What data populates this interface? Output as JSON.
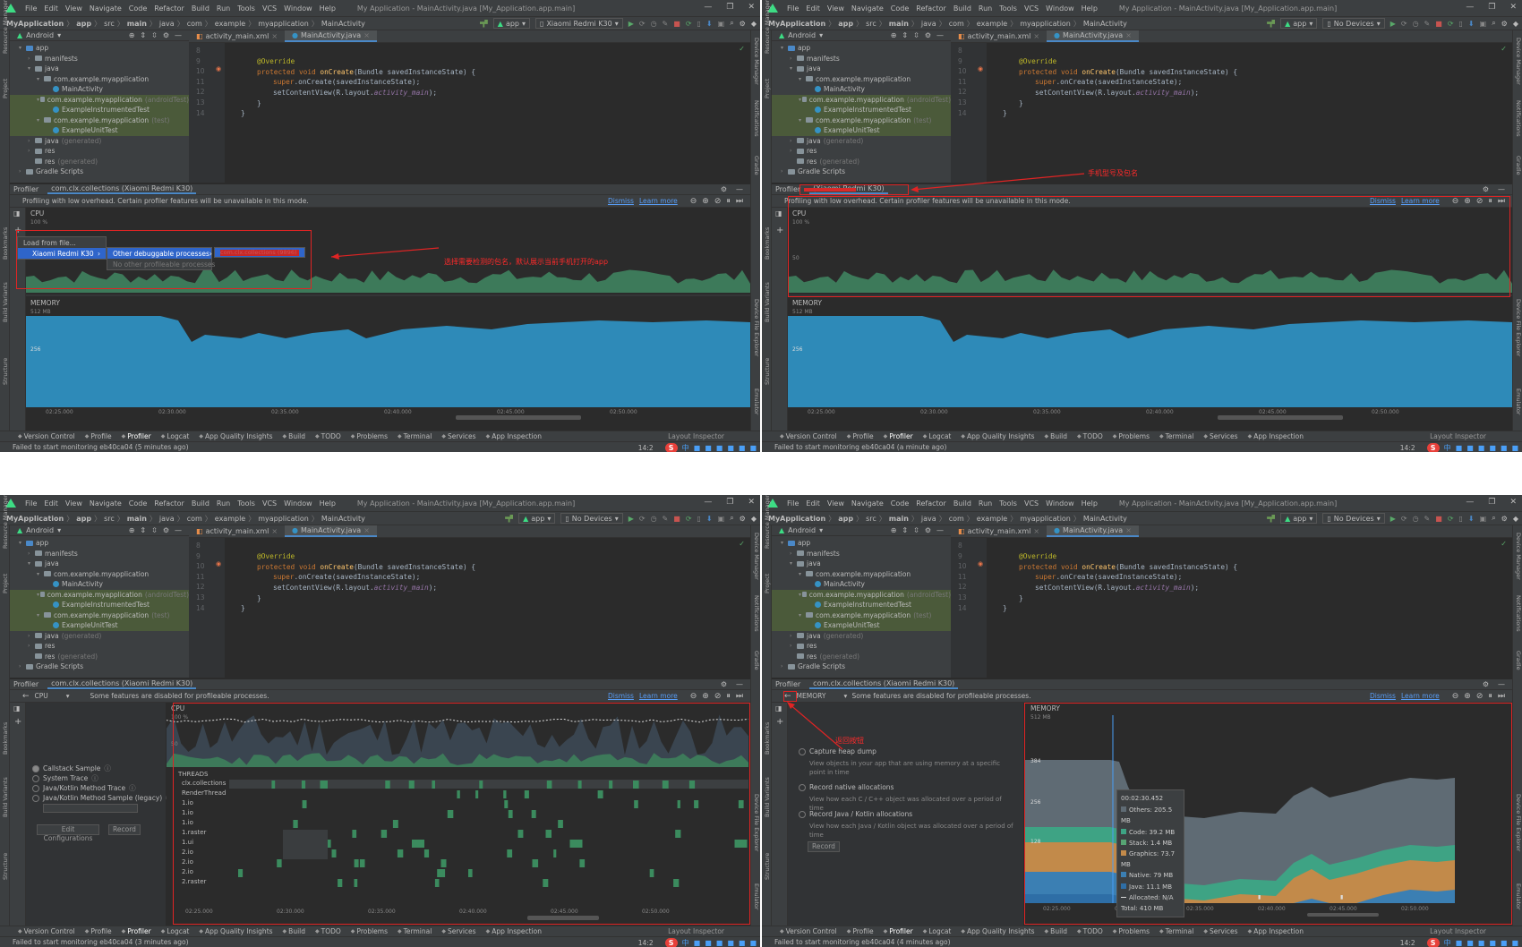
{
  "window": {
    "menu": [
      "File",
      "Edit",
      "View",
      "Navigate",
      "Code",
      "Refactor",
      "Build",
      "Run",
      "Tools",
      "VCS",
      "Window",
      "Help"
    ],
    "title": "My Application - MainActivity.java [My_Application.app.main]",
    "controls": [
      "—",
      "❐",
      "✕"
    ]
  },
  "breadcrumb": [
    "MyApplication",
    "app",
    "src",
    "main",
    "java",
    "com",
    "example",
    "myapplication",
    "MainActivity"
  ],
  "run_config": "app",
  "devices": {
    "q1": "Xiaomi Redmi K30",
    "q2": "No Devices",
    "q3": "No Devices",
    "q4": "No Devices"
  },
  "project": {
    "view": "Android",
    "tree": [
      {
        "label": "app",
        "depth": 0,
        "kind": "folder-blue",
        "arrow": "▾"
      },
      {
        "label": "manifests",
        "depth": 1,
        "kind": "folder",
        "arrow": "›"
      },
      {
        "label": "java",
        "depth": 1,
        "kind": "folder",
        "arrow": "▾"
      },
      {
        "label": "com.example.myapplication",
        "depth": 2,
        "kind": "folder",
        "arrow": "▾"
      },
      {
        "label": "MainActivity",
        "depth": 3,
        "kind": "class",
        "arrow": ""
      },
      {
        "label": "com.example.myapplication",
        "suffix": "(androidTest)",
        "depth": 2,
        "kind": "folder",
        "arrow": "▾",
        "hl": true
      },
      {
        "label": "ExampleInstrumentedTest",
        "depth": 3,
        "kind": "class",
        "arrow": "",
        "hl": true
      },
      {
        "label": "com.example.myapplication",
        "suffix": "(test)",
        "depth": 2,
        "kind": "folder",
        "arrow": "▾",
        "hl": true
      },
      {
        "label": "ExampleUnitTest",
        "depth": 3,
        "kind": "class",
        "arrow": "",
        "hl": true
      },
      {
        "label": "java",
        "suffix": "(generated)",
        "depth": 1,
        "kind": "folder",
        "arrow": "›"
      },
      {
        "label": "res",
        "depth": 1,
        "kind": "folder",
        "arrow": "›"
      },
      {
        "label": "res",
        "suffix": "(generated)",
        "depth": 1,
        "kind": "folder",
        "arrow": ""
      },
      {
        "label": "Gradle Scripts",
        "depth": 0,
        "kind": "folder",
        "arrow": "›"
      }
    ]
  },
  "editor": {
    "tabs": [
      "activity_main.xml",
      "MainActivity.java"
    ],
    "line_numbers": [
      "8",
      "9",
      "10",
      "11",
      "12",
      "13",
      "14"
    ],
    "code": {
      "l1": "@Override",
      "l2_kw": "protected void ",
      "l2_fn": "onCreate",
      "l2_rest": "(Bundle savedInstanceState) {",
      "l3_kw": "super",
      "l3_rest": ".onCreate(savedInstanceState);",
      "l4_a": "setContentView(R.layout.",
      "l4_it": "activity_main",
      "l4_b": ");",
      "l5": "}",
      "l6": "}"
    }
  },
  "profiler": {
    "title": "Profiler",
    "session_q1": "com.clx.collections (Xiaomi Redmi K30)",
    "session_q2": "(Xiaomi Redmi K30)",
    "session_q3": "com.clx.collections (Xiaomi Redmi K30)",
    "session_q4": "com.clx.collections (Xiaomi Redmi K30)",
    "overhead_msg": "Profiling with low overhead. Certain profiler features will be unavailable in this mode.",
    "disabled_msg": "Some features are disabled for profileable processes.",
    "dismiss": "Dismiss",
    "learn_more": "Learn more",
    "cpu_label": "CPU",
    "cpu_100": "100 %",
    "cpu_50": "50",
    "memory_label": "MEMORY",
    "memory_512": "512 MB",
    "memory_256": "256",
    "memory_384": "384",
    "memory_128": "128",
    "time_ticks": [
      "02:25.000",
      "02:30.000",
      "02:35.000",
      "02:40.000",
      "02:45.000",
      "02:50.000"
    ],
    "cpu_dropdown": "CPU",
    "memory_dropdown": "MEMORY"
  },
  "popup": {
    "load": "Load from file...",
    "device": "Xiaomi Redmi K30",
    "other": "Other debuggable processes",
    "none": "No other profileable processes",
    "process_redacted": "com.clx.collections (9896)"
  },
  "annotations": {
    "select_pkg": "选择需要检测的包名，默认展示当前手机打开的app",
    "phone_model": "手机型号及包名",
    "back_btn": "返回按钮"
  },
  "cpu_view": {
    "threads_label": "THREADS",
    "threads": [
      "clx.collections",
      "RenderThread",
      "1.io",
      "1.io",
      "1.io",
      "1.raster",
      "1.ui",
      "2.io",
      "2.io",
      "2.io",
      "2.raster"
    ],
    "record_options": [
      "Callstack Sample",
      "System Trace",
      "Java/Kotlin Method Trace",
      "Java/Kotlin Method Sample (legacy)"
    ],
    "edit_config": "Edit Configurations",
    "record": "Record"
  },
  "memory_view": {
    "options": [
      {
        "title": "Capture heap dump",
        "desc": "View objects in your app that are using memory at a specific point in time"
      },
      {
        "title": "Record native allocations",
        "desc": "View how each C / C++ object was allocated over a period of time"
      },
      {
        "title": "Record Java / Kotlin allocations",
        "desc": "View how each Java / Kotlin object was allocated over a period of time"
      }
    ],
    "record": "Record",
    "tooltip": {
      "time": "00:02:30.452",
      "rows": [
        {
          "label": "Others: 205.5 MB",
          "color": "#5f6b74"
        },
        {
          "label": "Code: 39.2 MB",
          "color": "#3ea384"
        },
        {
          "label": "Stack: 1.4 MB",
          "color": "#57a574"
        },
        {
          "label": "Graphics: 73.7 MB",
          "color": "#c28a4a"
        },
        {
          "label": "Native: 79 MB",
          "color": "#3b7fb3"
        },
        {
          "label": "Java: 11.1 MB",
          "color": "#2e6ea6"
        },
        {
          "label": "Allocated: N/A",
          "color": "#dddddd"
        },
        {
          "label": "Total: 410 MB",
          "color": "none"
        }
      ]
    }
  },
  "toolwindows": [
    "Version Control",
    "Profile",
    "Profiler",
    "Logcat",
    "App Quality Insights",
    "Build",
    "TODO",
    "Problems",
    "Terminal",
    "Services",
    "App Inspection"
  ],
  "layout_inspector": "Layout Inspector",
  "side_labels": {
    "left": [
      "Resource Manager",
      "Project",
      "Bookmarks",
      "Build Variants",
      "Structure"
    ],
    "right": [
      "Device Manager",
      "Notifications",
      "Gradle",
      "Device File Explorer",
      "Emulator"
    ]
  },
  "status": {
    "q1": "Failed to start monitoring eb40ca04 (5 minutes ago)",
    "q2": "Failed to start monitoring eb40ca04 (a minute ago)",
    "q3": "Failed to start monitoring eb40ca04 (3 minutes ago)",
    "q4": "Failed to start monitoring eb40ca04 (4 minutes ago)",
    "position": "14:2",
    "tray_s": "S",
    "tray_ime": "中"
  }
}
